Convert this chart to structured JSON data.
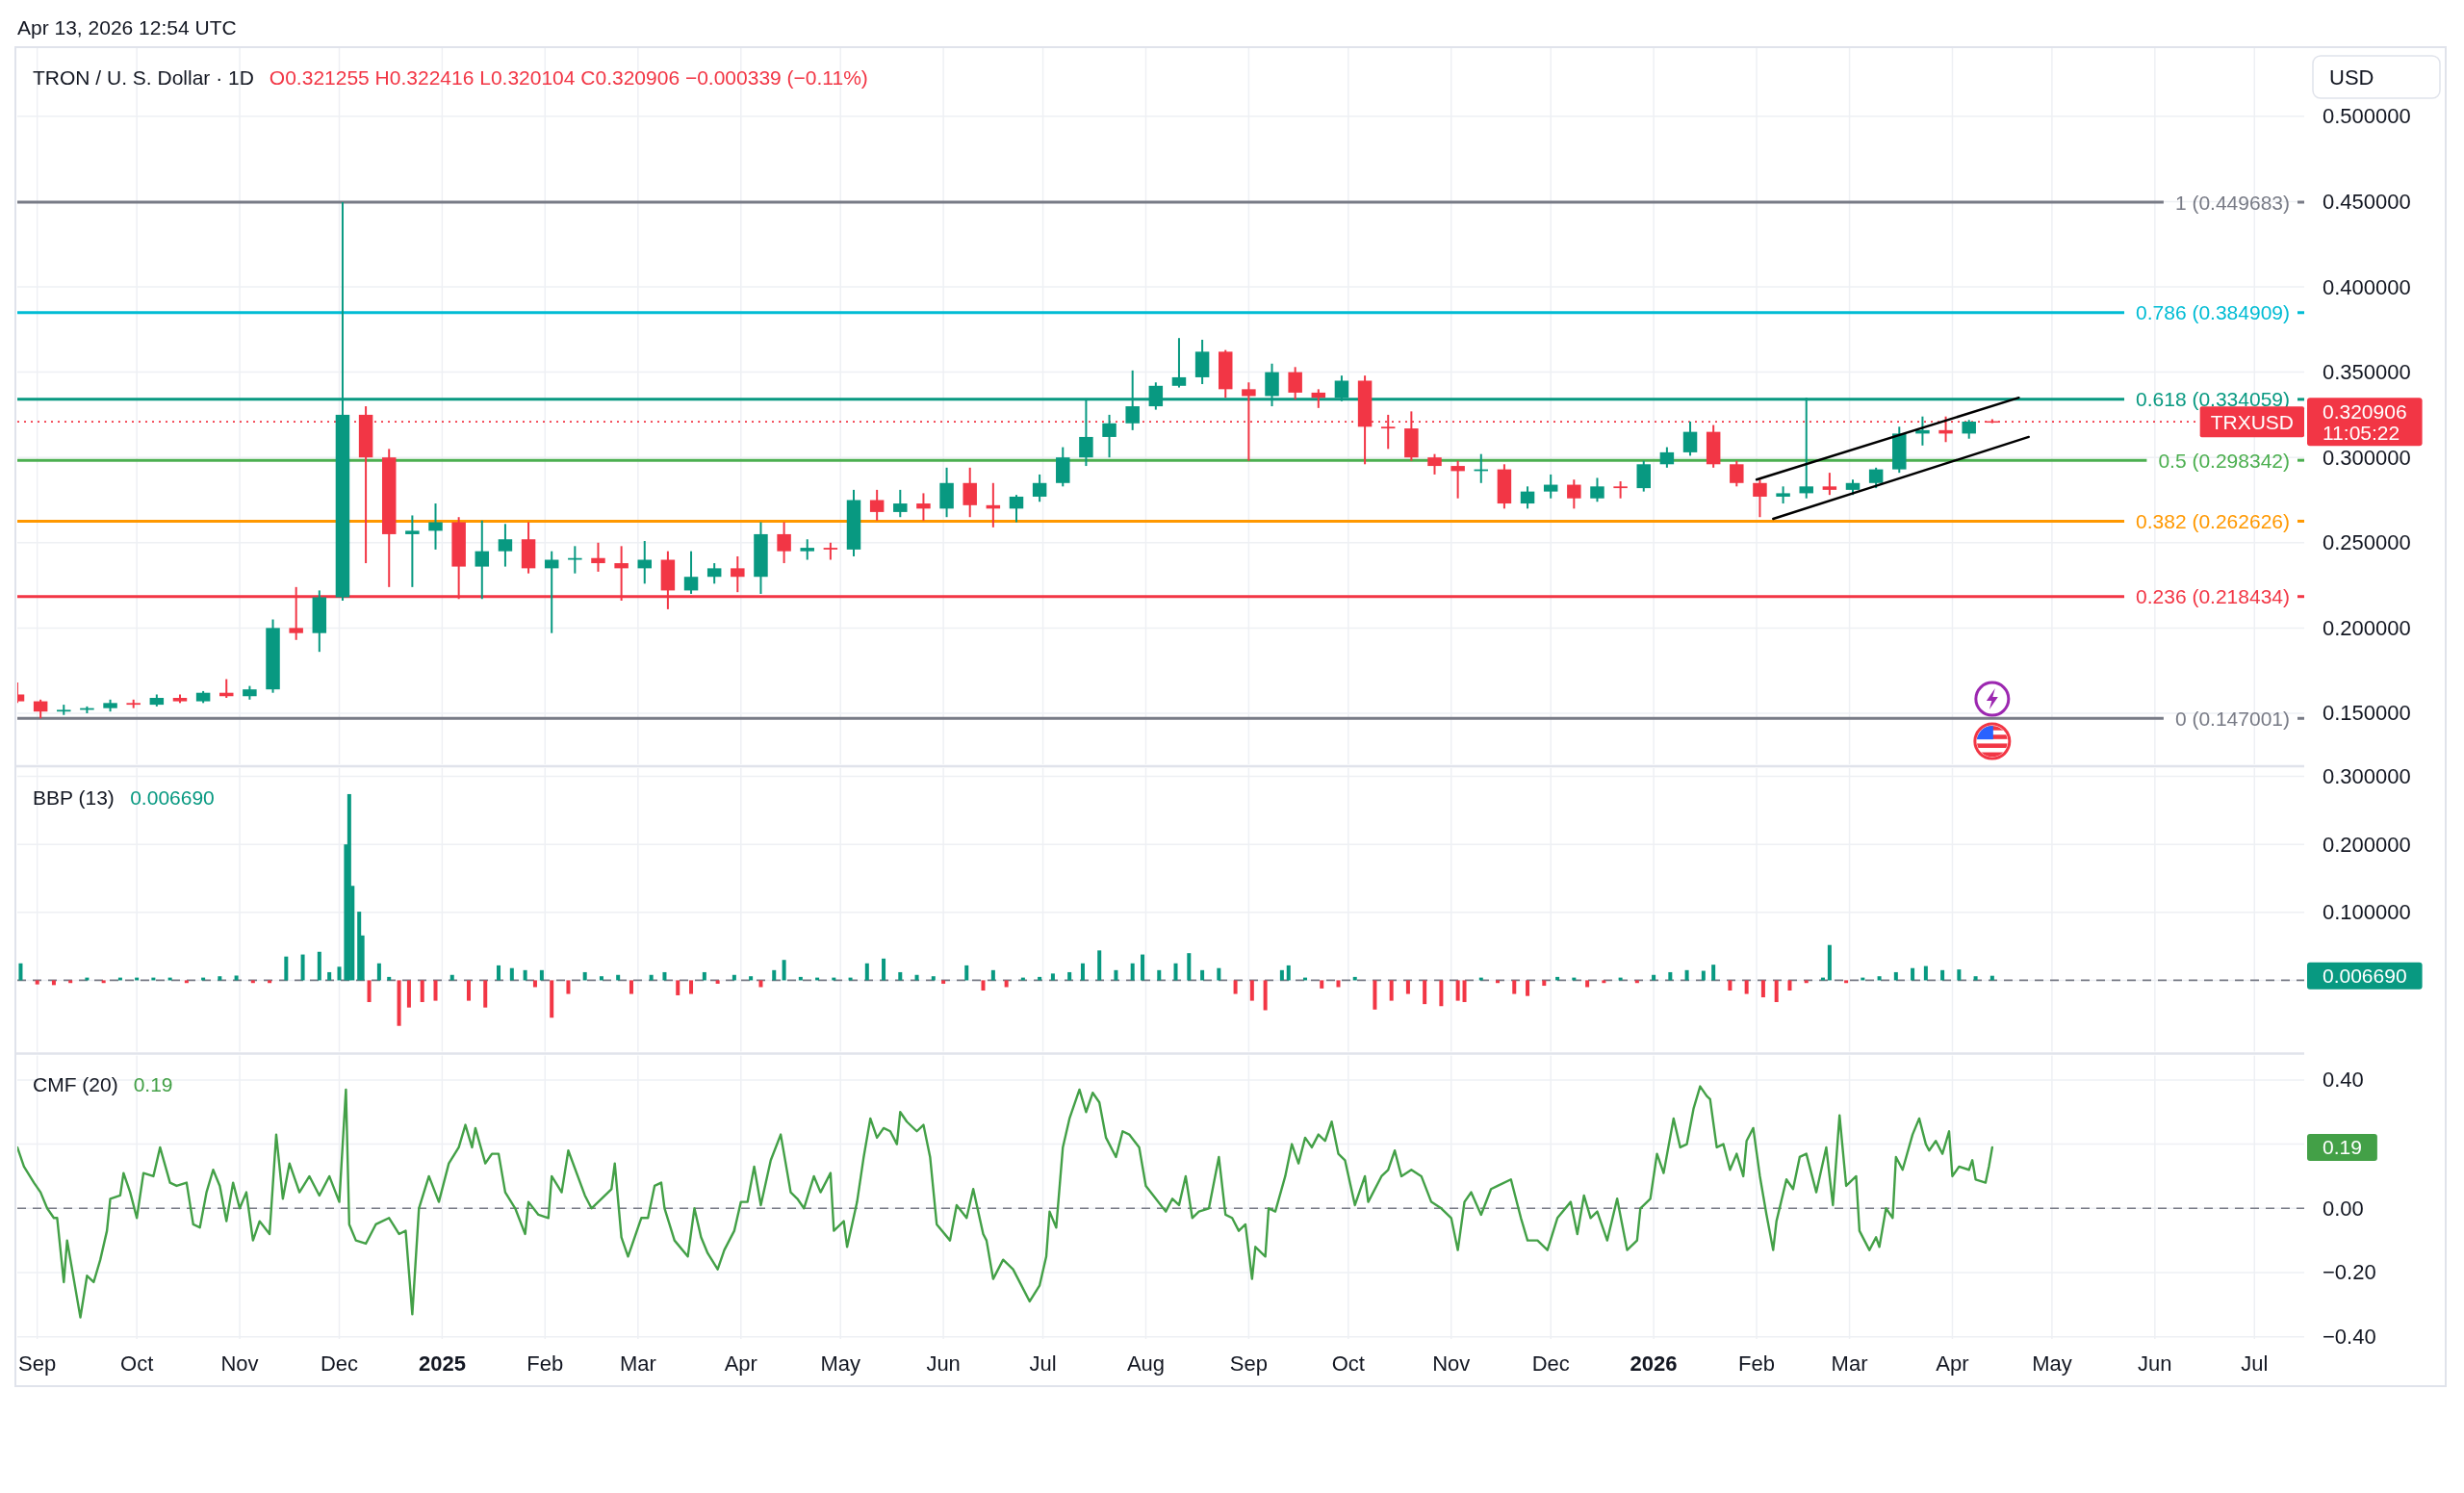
{
  "chart_data": [
    {
      "type": "candlestick",
      "title": "TRON / U. S. Dollar · 1D",
      "subtitle": "O0.321255 H0.322416 L0.320104 C0.320906 −0.000339 (−0.11%)",
      "ylabel": "USD",
      "x": [
        "2024-08-26",
        "2024-09-02",
        "2024-09-09",
        "2024-09-16",
        "2024-09-23",
        "2024-09-30",
        "2024-10-07",
        "2024-10-14",
        "2024-10-21",
        "2024-10-28",
        "2024-11-04",
        "2024-11-11",
        "2024-11-18",
        "2024-11-25",
        "2024-12-02",
        "2024-12-09",
        "2024-12-16",
        "2024-12-23",
        "2024-12-30",
        "2025-01-06",
        "2025-01-13",
        "2025-01-20",
        "2025-01-27",
        "2025-02-03",
        "2025-02-10",
        "2025-02-17",
        "2025-02-24",
        "2025-03-03",
        "2025-03-10",
        "2025-03-17",
        "2025-03-24",
        "2025-03-31",
        "2025-04-07",
        "2025-04-14",
        "2025-04-21",
        "2025-04-28",
        "2025-05-05",
        "2025-05-12",
        "2025-05-19",
        "2025-05-26",
        "2025-06-02",
        "2025-06-09",
        "2025-06-16",
        "2025-06-23",
        "2025-06-30",
        "2025-07-07",
        "2025-07-14",
        "2025-07-21",
        "2025-07-28",
        "2025-08-04",
        "2025-08-11",
        "2025-08-18",
        "2025-08-25",
        "2025-09-01",
        "2025-09-08",
        "2025-09-15",
        "2025-09-22",
        "2025-09-29",
        "2025-10-06",
        "2025-10-13",
        "2025-10-20",
        "2025-10-27",
        "2025-11-03",
        "2025-11-10",
        "2025-11-17",
        "2025-11-24",
        "2025-12-01",
        "2025-12-08",
        "2025-12-15",
        "2025-12-22",
        "2025-12-29",
        "2026-01-05",
        "2026-01-12",
        "2026-01-19",
        "2026-01-26",
        "2026-02-02",
        "2026-02-09",
        "2026-02-16",
        "2026-02-23",
        "2026-03-02",
        "2026-03-09",
        "2026-03-16",
        "2026-03-23",
        "2026-03-30",
        "2026-04-06",
        "2026-04-13"
      ],
      "ohlc": [
        [
          0.161,
          0.168,
          0.156,
          0.157
        ],
        [
          0.157,
          0.158,
          0.147,
          0.151
        ],
        [
          0.151,
          0.155,
          0.149,
          0.152
        ],
        [
          0.152,
          0.154,
          0.15,
          0.153
        ],
        [
          0.153,
          0.158,
          0.151,
          0.156
        ],
        [
          0.156,
          0.158,
          0.153,
          0.155
        ],
        [
          0.155,
          0.161,
          0.154,
          0.159
        ],
        [
          0.159,
          0.161,
          0.156,
          0.157
        ],
        [
          0.157,
          0.163,
          0.156,
          0.162
        ],
        [
          0.162,
          0.17,
          0.159,
          0.16
        ],
        [
          0.16,
          0.166,
          0.158,
          0.164
        ],
        [
          0.164,
          0.205,
          0.162,
          0.2
        ],
        [
          0.2,
          0.224,
          0.193,
          0.197
        ],
        [
          0.197,
          0.222,
          0.186,
          0.218
        ],
        [
          0.218,
          0.449683,
          0.216,
          0.325
        ],
        [
          0.325,
          0.33,
          0.238,
          0.3
        ],
        [
          0.3,
          0.305,
          0.224,
          0.255
        ],
        [
          0.255,
          0.266,
          0.224,
          0.257
        ],
        [
          0.257,
          0.273,
          0.246,
          0.262
        ],
        [
          0.262,
          0.265,
          0.217,
          0.236
        ],
        [
          0.236,
          0.263,
          0.217,
          0.245
        ],
        [
          0.245,
          0.261,
          0.236,
          0.252
        ],
        [
          0.252,
          0.262,
          0.232,
          0.235
        ],
        [
          0.235,
          0.245,
          0.197,
          0.24
        ],
        [
          0.24,
          0.248,
          0.232,
          0.241
        ],
        [
          0.241,
          0.25,
          0.233,
          0.238
        ],
        [
          0.238,
          0.248,
          0.216,
          0.235
        ],
        [
          0.235,
          0.251,
          0.226,
          0.24
        ],
        [
          0.24,
          0.245,
          0.211,
          0.222
        ],
        [
          0.222,
          0.245,
          0.22,
          0.23
        ],
        [
          0.23,
          0.238,
          0.226,
          0.235
        ],
        [
          0.235,
          0.242,
          0.221,
          0.23
        ],
        [
          0.23,
          0.262,
          0.22,
          0.255
        ],
        [
          0.255,
          0.262,
          0.238,
          0.245
        ],
        [
          0.245,
          0.252,
          0.24,
          0.247
        ],
        [
          0.247,
          0.25,
          0.24,
          0.246
        ],
        [
          0.246,
          0.281,
          0.242,
          0.275
        ],
        [
          0.275,
          0.281,
          0.263,
          0.268
        ],
        [
          0.268,
          0.281,
          0.265,
          0.273
        ],
        [
          0.273,
          0.279,
          0.263,
          0.27
        ],
        [
          0.27,
          0.294,
          0.265,
          0.285
        ],
        [
          0.285,
          0.294,
          0.265,
          0.272
        ],
        [
          0.272,
          0.285,
          0.259,
          0.27
        ],
        [
          0.27,
          0.278,
          0.262,
          0.277
        ],
        [
          0.277,
          0.29,
          0.274,
          0.285
        ],
        [
          0.285,
          0.306,
          0.283,
          0.3
        ],
        [
          0.3,
          0.334,
          0.295,
          0.312
        ],
        [
          0.312,
          0.325,
          0.3,
          0.32
        ],
        [
          0.32,
          0.351,
          0.316,
          0.33
        ],
        [
          0.33,
          0.344,
          0.328,
          0.342
        ],
        [
          0.342,
          0.37,
          0.341,
          0.347
        ],
        [
          0.347,
          0.369,
          0.343,
          0.362
        ],
        [
          0.362,
          0.363,
          0.335,
          0.34
        ],
        [
          0.34,
          0.344,
          0.298,
          0.336
        ],
        [
          0.336,
          0.355,
          0.33,
          0.35
        ],
        [
          0.35,
          0.353,
          0.334,
          0.338
        ],
        [
          0.338,
          0.34,
          0.329,
          0.335
        ],
        [
          0.335,
          0.348,
          0.333,
          0.345
        ],
        [
          0.345,
          0.348,
          0.296,
          0.318
        ],
        [
          0.318,
          0.325,
          0.305,
          0.317
        ],
        [
          0.317,
          0.327,
          0.298,
          0.3
        ],
        [
          0.3,
          0.302,
          0.29,
          0.295
        ],
        [
          0.295,
          0.298,
          0.276,
          0.292
        ],
        [
          0.292,
          0.302,
          0.285,
          0.293
        ],
        [
          0.293,
          0.296,
          0.27,
          0.273
        ],
        [
          0.273,
          0.283,
          0.27,
          0.28
        ],
        [
          0.28,
          0.29,
          0.276,
          0.284
        ],
        [
          0.284,
          0.287,
          0.27,
          0.276
        ],
        [
          0.276,
          0.288,
          0.274,
          0.283
        ],
        [
          0.283,
          0.286,
          0.276,
          0.282
        ],
        [
          0.282,
          0.298,
          0.28,
          0.296
        ],
        [
          0.296,
          0.306,
          0.294,
          0.303
        ],
        [
          0.303,
          0.321,
          0.301,
          0.315
        ],
        [
          0.315,
          0.319,
          0.294,
          0.296
        ],
        [
          0.296,
          0.298,
          0.283,
          0.285
        ],
        [
          0.285,
          0.287,
          0.265,
          0.277
        ],
        [
          0.277,
          0.283,
          0.273,
          0.279
        ],
        [
          0.279,
          0.335,
          0.276,
          0.283
        ],
        [
          0.283,
          0.291,
          0.278,
          0.281
        ],
        [
          0.281,
          0.287,
          0.278,
          0.285
        ],
        [
          0.285,
          0.294,
          0.282,
          0.293
        ],
        [
          0.293,
          0.318,
          0.291,
          0.314
        ],
        [
          0.314,
          0.324,
          0.307,
          0.316
        ],
        [
          0.316,
          0.324,
          0.309,
          0.314
        ],
        [
          0.314,
          0.322,
          0.311,
          0.321
        ],
        [
          0.321255,
          0.322416,
          0.320104,
          0.320906
        ]
      ],
      "colors": [
        "#f23645",
        "#f23645",
        "#089981",
        "#089981",
        "#089981",
        "#f23645",
        "#089981",
        "#f23645",
        "#089981",
        "#f23645",
        "#089981",
        "#089981",
        "#f23645",
        "#089981",
        "#089981",
        "#f23645",
        "#f23645",
        "#089981",
        "#089981",
        "#f23645",
        "#089981",
        "#089981",
        "#f23645",
        "#089981",
        "#089981",
        "#f23645",
        "#f23645",
        "#089981",
        "#f23645",
        "#089981",
        "#089981",
        "#f23645",
        "#089981",
        "#f23645",
        "#089981",
        "#f23645",
        "#089981",
        "#f23645",
        "#089981",
        "#f23645",
        "#089981",
        "#f23645",
        "#f23645",
        "#089981",
        "#089981",
        "#089981",
        "#089981",
        "#089981",
        "#089981",
        "#089981",
        "#089981",
        "#089981",
        "#f23645",
        "#f23645",
        "#089981",
        "#f23645",
        "#f23645",
        "#089981",
        "#f23645",
        "#f23645",
        "#f23645",
        "#f23645",
        "#f23645",
        "#089981",
        "#f23645",
        "#089981",
        "#089981",
        "#f23645",
        "#089981",
        "#f23645",
        "#089981",
        "#089981",
        "#089981",
        "#f23645",
        "#f23645",
        "#f23645",
        "#089981",
        "#089981",
        "#f23645",
        "#089981",
        "#089981",
        "#089981",
        "#089981",
        "#f23645",
        "#089981",
        "#f23645"
      ],
      "series": [
        {
          "type": "line",
          "x": [
            "2026-02-01",
            "2026-04-21"
          ],
          "values": [
            0.287,
            0.335
          ],
          "color": "#000000"
        },
        {
          "type": "line",
          "x": [
            "2026-02-06",
            "2026-04-24"
          ],
          "values": [
            0.264,
            0.312
          ],
          "color": "#000000"
        }
      ],
      "xlim": [
        "2024-08-26",
        "2026-07-16"
      ],
      "xticks": [
        {
          "value": "2024-09-01",
          "label": null
        },
        {
          "value": "2024-10-01",
          "label": null
        },
        {
          "value": "2024-11-01",
          "label": null
        },
        {
          "value": "2024-12-01",
          "label": null
        },
        {
          "value": "2025-01-01",
          "label": null
        },
        {
          "value": "2025-02-01",
          "label": null
        },
        {
          "value": "2025-03-01",
          "label": null
        },
        {
          "value": "2025-04-01",
          "label": null
        },
        {
          "value": "2025-05-01",
          "label": null
        },
        {
          "value": "2025-06-01",
          "label": null
        },
        {
          "value": "2025-07-01",
          "label": null
        },
        {
          "value": "2025-08-01",
          "label": null
        },
        {
          "value": "2025-09-01",
          "label": null
        },
        {
          "value": "2025-10-01",
          "label": null
        },
        {
          "value": "2025-11-01",
          "label": null
        },
        {
          "value": "2025-12-01",
          "label": null
        },
        {
          "value": "2026-01-01",
          "label": null
        },
        {
          "value": "2026-02-01",
          "label": null
        },
        {
          "value": "2026-03-01",
          "label": null
        },
        {
          "value": "2026-04-01",
          "label": null
        },
        {
          "value": "2026-05-01",
          "label": null
        },
        {
          "value": "2026-06-01",
          "label": null
        },
        {
          "value": "2026-07-01",
          "label": null
        }
      ],
      "ylim": [
        0.12,
        0.54
      ],
      "yticks": [
        {
          "value": 0.15,
          "label": "0.150000"
        },
        {
          "value": 0.2,
          "label": "0.200000"
        },
        {
          "value": 0.25,
          "label": "0.250000"
        },
        {
          "value": 0.3,
          "label": "0.300000"
        },
        {
          "value": 0.35,
          "label": "0.350000"
        },
        {
          "value": 0.4,
          "label": "0.400000"
        },
        {
          "value": 0.45,
          "label": "0.450000"
        },
        {
          "value": 0.5,
          "label": "0.500000"
        }
      ],
      "grid": true,
      "tick_labels": "y",
      "ref_lines": [
        {
          "axis": "y",
          "value": 0.449683,
          "label": "1 (0.449683)",
          "color": "#787b86"
        },
        {
          "axis": "y",
          "value": 0.384909,
          "label": "0.786 (0.384909)",
          "color": "#00bcd4"
        },
        {
          "axis": "y",
          "value": 0.334059,
          "label": "0.618 (0.334059)",
          "color": "#089981"
        },
        {
          "axis": "y",
          "value": 0.298342,
          "label": "0.5 (0.298342)",
          "color": "#4caf50"
        },
        {
          "axis": "y",
          "value": 0.262626,
          "label": "0.382 (0.262626)",
          "color": "#ff9800"
        },
        {
          "axis": "y",
          "value": 0.218434,
          "label": "0.236 (0.218434)",
          "color": "#f23645"
        },
        {
          "axis": "y",
          "value": 0.147001,
          "label": "0 (0.147001)",
          "color": "#787b86"
        },
        {
          "axis": "y",
          "value": 0.320906,
          "label": "TRXUSD",
          "color": "#f23645",
          "line_style": "dotted"
        }
      ],
      "annotations": [
        "Apr 13, 2026 12:54 UTC",
        "0.320906\n11:05:22"
      ]
    },
    {
      "type": "bar",
      "title": "BBP (13)",
      "subtitle": "0.006690",
      "x": [
        "2024-08-27",
        "2024-09-01",
        "2024-09-06",
        "2024-09-11",
        "2024-09-16",
        "2024-09-21",
        "2024-09-26",
        "2024-10-01",
        "2024-10-06",
        "2024-10-11",
        "2024-10-16",
        "2024-10-21",
        "2024-10-26",
        "2024-10-31",
        "2024-11-05",
        "2024-11-10",
        "2024-11-15",
        "2024-11-20",
        "2024-11-25",
        "2024-11-28",
        "2024-12-01",
        "2024-12-03",
        "2024-12-04",
        "2024-12-05",
        "2024-12-07",
        "2024-12-08",
        "2024-12-10",
        "2024-12-13",
        "2024-12-16",
        "2024-12-19",
        "2024-12-22",
        "2024-12-26",
        "2024-12-30",
        "2025-01-04",
        "2025-01-09",
        "2025-01-14",
        "2025-01-18",
        "2025-01-22",
        "2025-01-26",
        "2025-01-29",
        "2025-01-31",
        "2025-02-03",
        "2025-02-08",
        "2025-02-13",
        "2025-02-18",
        "2025-02-23",
        "2025-02-27",
        "2025-03-05",
        "2025-03-09",
        "2025-03-13",
        "2025-03-17",
        "2025-03-21",
        "2025-03-25",
        "2025-03-30",
        "2025-04-04",
        "2025-04-07",
        "2025-04-11",
        "2025-04-14",
        "2025-04-19",
        "2025-04-24",
        "2025-04-29",
        "2025-05-04",
        "2025-05-09",
        "2025-05-14",
        "2025-05-19",
        "2025-05-24",
        "2025-05-29",
        "2025-06-01",
        "2025-06-08",
        "2025-06-13",
        "2025-06-16",
        "2025-06-20",
        "2025-06-25",
        "2025-06-30",
        "2025-07-04",
        "2025-07-09",
        "2025-07-13",
        "2025-07-18",
        "2025-07-23",
        "2025-07-28",
        "2025-07-31",
        "2025-08-05",
        "2025-08-10",
        "2025-08-14",
        "2025-08-18",
        "2025-08-23",
        "2025-08-28",
        "2025-09-02",
        "2025-09-06",
        "2025-09-11",
        "2025-09-13",
        "2025-09-18",
        "2025-09-23",
        "2025-09-28",
        "2025-10-03",
        "2025-10-09",
        "2025-10-14",
        "2025-10-19",
        "2025-10-24",
        "2025-10-29",
        "2025-11-03",
        "2025-11-05",
        "2025-11-10",
        "2025-11-15",
        "2025-11-20",
        "2025-11-24",
        "2025-11-29",
        "2025-12-03",
        "2025-12-08",
        "2025-12-12",
        "2025-12-17",
        "2025-12-22",
        "2025-12-27",
        "2026-01-01",
        "2026-01-06",
        "2026-01-11",
        "2026-01-16",
        "2026-01-19",
        "2026-01-24",
        "2026-01-29",
        "2026-02-03",
        "2026-02-07",
        "2026-02-11",
        "2026-02-16",
        "2026-02-21",
        "2026-02-23",
        "2026-02-28",
        "2026-03-05",
        "2026-03-10",
        "2026-03-15",
        "2026-03-20",
        "2026-03-24",
        "2026-03-29",
        "2026-04-03",
        "2026-04-08",
        "2026-04-13"
      ],
      "values": [
        0.025,
        -0.006,
        -0.007,
        -0.004,
        0.004,
        -0.004,
        0.004,
        0.004,
        0.004,
        0.004,
        -0.004,
        0.004,
        0.006,
        0.007,
        -0.004,
        -0.004,
        0.035,
        0.038,
        0.042,
        0.012,
        0.02,
        0.2,
        0.274,
        0.139,
        0.101,
        0.066,
        -0.032,
        0.025,
        0.005,
        -0.067,
        -0.04,
        -0.032,
        -0.03,
        0.008,
        -0.03,
        -0.04,
        0.022,
        0.018,
        0.015,
        -0.01,
        0.015,
        -0.055,
        -0.02,
        0.012,
        0.006,
        0.008,
        -0.02,
        0.008,
        0.012,
        -0.022,
        -0.02,
        0.012,
        -0.005,
        0.008,
        0.006,
        -0.01,
        0.015,
        0.03,
        0.005,
        0.004,
        0.004,
        0.004,
        0.025,
        0.032,
        0.012,
        0.008,
        0.006,
        -0.005,
        0.022,
        -0.015,
        0.015,
        -0.01,
        0.004,
        0.005,
        0.01,
        0.012,
        0.025,
        0.044,
        0.015,
        0.025,
        0.038,
        0.015,
        0.025,
        0.04,
        0.015,
        0.018,
        -0.02,
        -0.03,
        -0.044,
        0.015,
        0.022,
        0.004,
        -0.012,
        -0.01,
        0.005,
        -0.043,
        -0.03,
        -0.02,
        -0.035,
        -0.038,
        -0.03,
        -0.032,
        0.004,
        -0.004,
        -0.02,
        -0.023,
        -0.008,
        0.005,
        0.004,
        -0.01,
        -0.004,
        0.004,
        -0.004,
        0.008,
        0.012,
        0.015,
        0.014,
        0.023,
        -0.015,
        -0.02,
        -0.025,
        -0.032,
        -0.015,
        -0.004,
        0.004,
        0.052,
        -0.004,
        0.004,
        0.006,
        0.012,
        0.018,
        0.021,
        0.015,
        0.016,
        0.006,
        0.00669
      ],
      "colors": [
        "#089981",
        "#f23645",
        "#f23645",
        "#f23645",
        "#089981",
        "#f23645",
        "#089981",
        "#089981",
        "#089981",
        "#089981",
        "#f23645",
        "#089981",
        "#089981",
        "#089981",
        "#f23645",
        "#f23645",
        "#089981",
        "#089981",
        "#089981",
        "#089981",
        "#089981",
        "#089981",
        "#089981",
        "#089981",
        "#089981",
        "#089981",
        "#f23645",
        "#089981",
        "#089981",
        "#f23645",
        "#f23645",
        "#f23645",
        "#f23645",
        "#089981",
        "#f23645",
        "#f23645",
        "#089981",
        "#089981",
        "#089981",
        "#f23645",
        "#089981",
        "#f23645",
        "#f23645",
        "#089981",
        "#089981",
        "#089981",
        "#f23645",
        "#089981",
        "#089981",
        "#f23645",
        "#f23645",
        "#089981",
        "#f23645",
        "#089981",
        "#089981",
        "#f23645",
        "#089981",
        "#089981",
        "#089981",
        "#089981",
        "#089981",
        "#089981",
        "#089981",
        "#089981",
        "#089981",
        "#089981",
        "#089981",
        "#f23645",
        "#089981",
        "#f23645",
        "#089981",
        "#f23645",
        "#089981",
        "#089981",
        "#089981",
        "#089981",
        "#089981",
        "#089981",
        "#089981",
        "#089981",
        "#089981",
        "#089981",
        "#089981",
        "#089981",
        "#089981",
        "#089981",
        "#f23645",
        "#f23645",
        "#f23645",
        "#089981",
        "#089981",
        "#089981",
        "#f23645",
        "#f23645",
        "#089981",
        "#f23645",
        "#f23645",
        "#f23645",
        "#f23645",
        "#f23645",
        "#f23645",
        "#f23645",
        "#089981",
        "#f23645",
        "#f23645",
        "#f23645",
        "#f23645",
        "#089981",
        "#089981",
        "#f23645",
        "#f23645",
        "#089981",
        "#f23645",
        "#089981",
        "#089981",
        "#089981",
        "#089981",
        "#089981",
        "#f23645",
        "#f23645",
        "#f23645",
        "#f23645",
        "#f23645",
        "#f23645",
        "#089981",
        "#089981",
        "#f23645",
        "#089981",
        "#089981",
        "#089981",
        "#089981",
        "#089981",
        "#089981",
        "#089981",
        "#089981",
        "#089981"
      ],
      "xlim": [
        "2024-08-26",
        "2026-07-16"
      ],
      "xticks": [
        {
          "value": "2024-09-01",
          "label": null
        },
        {
          "value": "2024-10-01",
          "label": null
        },
        {
          "value": "2024-11-01",
          "label": null
        },
        {
          "value": "2024-12-01",
          "label": null
        },
        {
          "value": "2025-01-01",
          "label": null
        },
        {
          "value": "2025-02-01",
          "label": null
        },
        {
          "value": "2025-03-01",
          "label": null
        },
        {
          "value": "2025-04-01",
          "label": null
        },
        {
          "value": "2025-05-01",
          "label": null
        },
        {
          "value": "2025-06-01",
          "label": null
        },
        {
          "value": "2025-07-01",
          "label": null
        },
        {
          "value": "2025-08-01",
          "label": null
        },
        {
          "value": "2025-09-01",
          "label": null
        },
        {
          "value": "2025-10-01",
          "label": null
        },
        {
          "value": "2025-11-01",
          "label": null
        },
        {
          "value": "2025-12-01",
          "label": null
        },
        {
          "value": "2026-01-01",
          "label": null
        },
        {
          "value": "2026-02-01",
          "label": null
        },
        {
          "value": "2026-03-01",
          "label": null
        },
        {
          "value": "2026-04-01",
          "label": null
        },
        {
          "value": "2026-05-01",
          "label": null
        },
        {
          "value": "2026-06-01",
          "label": null
        },
        {
          "value": "2026-07-01",
          "label": null
        }
      ],
      "ylim": [
        -0.105,
        0.312
      ],
      "yticks": [
        {
          "value": 0,
          "label": null
        },
        {
          "value": 0.1,
          "label": "0.100000"
        },
        {
          "value": 0.2,
          "label": "0.200000"
        },
        {
          "value": 0.3,
          "label": "0.300000"
        }
      ],
      "grid": true,
      "tick_labels": "y",
      "ref_lines": [
        {
          "axis": "y",
          "value": 0,
          "color": "#787b86",
          "line_style": "dashed"
        }
      ],
      "annotations": [
        "0.006690"
      ]
    },
    {
      "type": "line",
      "title": "CMF (20)",
      "subtitle": "0.19",
      "color": "#43a047",
      "x": [
        "2024-08-26",
        "2024-08-28",
        "2024-08-31",
        "2024-09-02",
        "2024-09-04",
        "2024-09-06",
        "2024-09-07",
        "2024-09-09",
        "2024-09-10",
        "2024-09-11",
        "2024-09-14",
        "2024-09-16",
        "2024-09-18",
        "2024-09-20",
        "2024-09-22",
        "2024-09-23",
        "2024-09-26",
        "2024-09-27",
        "2024-09-29",
        "2024-10-01",
        "2024-10-03",
        "2024-10-06",
        "2024-10-08",
        "2024-10-11",
        "2024-10-13",
        "2024-10-16",
        "2024-10-18",
        "2024-10-20",
        "2024-10-22",
        "2024-10-24",
        "2024-10-26",
        "2024-10-28",
        "2024-10-30",
        "2024-11-01",
        "2024-11-03",
        "2024-11-05",
        "2024-11-07",
        "2024-11-10",
        "2024-11-12",
        "2024-11-14",
        "2024-11-16",
        "2024-11-19",
        "2024-11-22",
        "2024-11-25",
        "2024-11-28",
        "2024-12-01",
        "2024-12-03",
        "2024-12-04",
        "2024-12-06",
        "2024-12-09",
        "2024-12-12",
        "2024-12-16",
        "2024-12-19",
        "2024-12-21",
        "2024-12-23",
        "2024-12-25",
        "2024-12-28",
        "2024-12-31",
        "2025-01-03",
        "2025-01-06",
        "2025-01-08",
        "2025-01-10",
        "2025-01-11",
        "2025-01-14",
        "2025-01-16",
        "2025-01-18",
        "2025-01-20",
        "2025-01-23",
        "2025-01-26",
        "2025-01-27",
        "2025-01-30",
        "2025-02-02",
        "2025-02-03",
        "2025-02-06",
        "2025-02-08",
        "2025-02-13",
        "2025-02-15",
        "2025-02-18",
        "2025-02-21",
        "2025-02-22",
        "2025-02-24",
        "2025-02-26",
        "2025-03-02",
        "2025-03-04",
        "2025-03-06",
        "2025-03-08",
        "2025-03-09",
        "2025-03-12",
        "2025-03-16",
        "2025-03-18",
        "2025-03-20",
        "2025-03-22",
        "2025-03-25",
        "2025-03-27",
        "2025-03-30",
        "2025-04-01",
        "2025-04-03",
        "2025-04-05",
        "2025-04-07",
        "2025-04-10",
        "2025-04-13",
        "2025-04-16",
        "2025-04-18",
        "2025-04-20",
        "2025-04-23",
        "2025-04-25",
        "2025-04-28",
        "2025-04-29",
        "2025-05-02",
        "2025-05-03",
        "2025-05-06",
        "2025-05-08",
        "2025-05-10",
        "2025-05-12",
        "2025-05-14",
        "2025-05-16",
        "2025-05-18",
        "2025-05-19",
        "2025-05-21",
        "2025-05-24",
        "2025-05-26",
        "2025-05-28",
        "2025-05-30",
        "2025-06-03",
        "2025-06-05",
        "2025-06-08",
        "2025-06-10",
        "2025-06-13",
        "2025-06-14",
        "2025-06-16",
        "2025-06-19",
        "2025-06-22",
        "2025-06-25",
        "2025-06-27",
        "2025-06-30",
        "2025-07-02",
        "2025-07-03",
        "2025-07-05",
        "2025-07-07",
        "2025-07-09",
        "2025-07-12",
        "2025-07-14",
        "2025-07-16",
        "2025-07-18",
        "2025-07-20",
        "2025-07-23",
        "2025-07-25",
        "2025-07-27",
        "2025-07-30",
        "2025-08-01",
        "2025-08-04",
        "2025-08-07",
        "2025-08-09",
        "2025-08-11",
        "2025-08-13",
        "2025-08-15",
        "2025-08-17",
        "2025-08-20",
        "2025-08-23",
        "2025-08-25",
        "2025-08-27",
        "2025-08-29",
        "2025-08-31",
        "2025-09-02",
        "2025-09-03",
        "2025-09-06",
        "2025-09-07",
        "2025-09-09",
        "2025-09-12",
        "2025-09-14",
        "2025-09-16",
        "2025-09-18",
        "2025-09-20",
        "2025-09-22",
        "2025-09-24",
        "2025-09-26",
        "2025-09-28",
        "2025-09-30",
        "2025-10-03",
        "2025-10-06",
        "2025-10-07",
        "2025-10-11",
        "2025-10-13",
        "2025-10-15",
        "2025-10-17",
        "2025-10-20",
        "2025-10-23",
        "2025-10-26",
        "2025-10-29",
        "2025-11-01",
        "2025-11-03",
        "2025-11-05",
        "2025-11-07",
        "2025-11-10",
        "2025-11-13",
        "2025-11-15",
        "2025-11-19",
        "2025-11-22",
        "2025-11-24",
        "2025-11-27",
        "2025-11-30",
        "2025-12-03",
        "2025-12-07",
        "2025-12-09",
        "2025-12-11",
        "2025-12-13",
        "2025-12-15",
        "2025-12-18",
        "2025-12-21",
        "2025-12-24",
        "2025-12-27",
        "2025-12-28",
        "2025-12-31",
        "2026-01-02",
        "2026-01-04",
        "2026-01-07",
        "2026-01-09",
        "2026-01-11",
        "2026-01-13",
        "2026-01-15",
        "2026-01-17",
        "2026-01-18",
        "2026-01-20",
        "2026-01-22",
        "2026-01-24",
        "2026-01-26",
        "2026-01-28",
        "2026-01-29",
        "2026-01-31",
        "2026-02-02",
        "2026-02-04",
        "2026-02-06",
        "2026-02-07",
        "2026-02-10",
        "2026-02-12",
        "2026-02-14",
        "2026-02-16",
        "2026-02-19",
        "2026-02-22",
        "2026-02-24",
        "2026-02-26",
        "2026-02-28",
        "2026-03-03",
        "2026-03-04",
        "2026-03-07",
        "2026-03-09",
        "2026-03-10",
        "2026-03-12",
        "2026-03-14",
        "2026-03-15",
        "2026-03-17",
        "2026-03-20",
        "2026-03-22",
        "2026-03-24",
        "2026-03-25",
        "2026-03-27",
        "2026-03-29",
        "2026-03-31",
        "2026-04-01",
        "2026-04-03",
        "2026-04-06",
        "2026-04-07",
        "2026-04-08",
        "2026-04-11",
        "2026-04-12",
        "2026-04-13"
      ],
      "values": [
        0.19,
        0.13,
        0.08,
        0.05,
        0,
        -0.03,
        -0.03,
        -0.23,
        -0.1,
        -0.16,
        -0.34,
        -0.21,
        -0.23,
        -0.16,
        -0.07,
        0.03,
        0.04,
        0.11,
        0.05,
        -0.03,
        0.11,
        0.1,
        0.19,
        0.08,
        0.07,
        0.08,
        -0.05,
        -0.06,
        0.05,
        0.12,
        0.07,
        -0.04,
        0.08,
        0,
        0.05,
        -0.1,
        -0.04,
        -0.08,
        0.23,
        0.03,
        0.14,
        0.05,
        0.1,
        0.04,
        0.1,
        0.02,
        0.37,
        -0.05,
        -0.1,
        -0.11,
        -0.05,
        -0.03,
        -0.08,
        -0.07,
        -0.33,
        0,
        0.1,
        0.02,
        0.14,
        0.19,
        0.26,
        0.19,
        0.25,
        0.14,
        0.17,
        0.17,
        0.05,
        0,
        -0.08,
        0.02,
        -0.02,
        -0.03,
        0.1,
        0.05,
        0.18,
        0.04,
        0,
        0.03,
        0.06,
        0.14,
        -0.09,
        -0.15,
        -0.03,
        -0.03,
        0.07,
        0.08,
        0,
        -0.1,
        -0.15,
        0,
        -0.09,
        -0.14,
        -0.19,
        -0.13,
        -0.07,
        0.02,
        0.02,
        0.13,
        0.01,
        0.15,
        0.23,
        0.05,
        0.03,
        0,
        0.1,
        0.05,
        0.11,
        -0.07,
        -0.04,
        -0.12,
        0.02,
        0.16,
        0.28,
        0.22,
        0.25,
        0.24,
        0.2,
        0.3,
        0.27,
        0.24,
        0.26,
        0.16,
        -0.05,
        -0.1,
        0.01,
        -0.03,
        0.06,
        -0.08,
        -0.1,
        -0.22,
        -0.16,
        -0.19,
        -0.25,
        -0.29,
        -0.24,
        -0.15,
        -0.01,
        -0.06,
        0.19,
        0.28,
        0.37,
        0.3,
        0.36,
        0.33,
        0.22,
        0.16,
        0.24,
        0.23,
        0.19,
        0.07,
        0.03,
        -0.01,
        0.03,
        0.01,
        0.1,
        -0.03,
        -0.01,
        0,
        0.16,
        -0.02,
        -0.03,
        -0.07,
        -0.05,
        -0.22,
        -0.12,
        -0.15,
        0,
        -0.01,
        0.1,
        0.2,
        0.14,
        0.22,
        0.19,
        0.23,
        0.21,
        0.27,
        0.17,
        0.15,
        0.01,
        0.1,
        0.02,
        0.1,
        0.12,
        0.18,
        0.1,
        0.12,
        0.1,
        0.02,
        0,
        -0.03,
        -0.13,
        0.02,
        0.05,
        -0.02,
        0.06,
        0.07,
        0.09,
        -0.03,
        -0.1,
        -0.1,
        -0.13,
        -0.03,
        0.02,
        -0.08,
        0.04,
        -0.03,
        -0.01,
        -0.1,
        0.03,
        -0.13,
        -0.1,
        0,
        0.03,
        0.17,
        0.11,
        0.28,
        0.19,
        0.2,
        0.31,
        0.38,
        0.35,
        0.34,
        0.19,
        0.2,
        0.12,
        0.17,
        0.1,
        0.21,
        0.25,
        0.1,
        -0.02,
        -0.13,
        -0.04,
        0.09,
        0.06,
        0.16,
        0.17,
        0.05,
        0.19,
        0.01,
        0.29,
        0.07,
        0.1,
        -0.07,
        -0.13,
        -0.09,
        -0.12,
        0,
        -0.03,
        0.16,
        0.12,
        0.23,
        0.28,
        0.2,
        0.18,
        0.21,
        0.17,
        0.24,
        0.1,
        0.13,
        0.12,
        0.15,
        0.09,
        0.08,
        0.13,
        0.19
      ],
      "xlim": [
        "2024-08-26",
        "2026-07-16"
      ],
      "xticks": [
        {
          "value": "2024-09-01",
          "label": "Sep"
        },
        {
          "value": "2024-10-01",
          "label": "Oct"
        },
        {
          "value": "2024-11-01",
          "label": "Nov"
        },
        {
          "value": "2024-12-01",
          "label": "Dec"
        },
        {
          "value": "2025-01-01",
          "label": "2025"
        },
        {
          "value": "2025-02-01",
          "label": "Feb"
        },
        {
          "value": "2025-03-01",
          "label": "Mar"
        },
        {
          "value": "2025-04-01",
          "label": "Apr"
        },
        {
          "value": "2025-05-01",
          "label": "May"
        },
        {
          "value": "2025-06-01",
          "label": "Jun"
        },
        {
          "value": "2025-07-01",
          "label": "Jul"
        },
        {
          "value": "2025-08-01",
          "label": "Aug"
        },
        {
          "value": "2025-09-01",
          "label": "Sep"
        },
        {
          "value": "2025-10-01",
          "label": "Oct"
        },
        {
          "value": "2025-11-01",
          "label": "Nov"
        },
        {
          "value": "2025-12-01",
          "label": "Dec"
        },
        {
          "value": "2026-01-01",
          "label": "2026"
        },
        {
          "value": "2026-02-01",
          "label": "Feb"
        },
        {
          "value": "2026-03-01",
          "label": "Mar"
        },
        {
          "value": "2026-04-01",
          "label": "Apr"
        },
        {
          "value": "2026-05-01",
          "label": "May"
        },
        {
          "value": "2026-06-01",
          "label": "Jun"
        },
        {
          "value": "2026-07-01",
          "label": "Jul"
        }
      ],
      "ylim": [
        -0.407,
        0.476
      ],
      "yticks": [
        {
          "value": -0.4,
          "label": "−0.40"
        },
        {
          "value": -0.2,
          "label": "−0.20"
        },
        {
          "value": 0,
          "label": "0.00"
        },
        {
          "value": 0.2,
          "label": null
        },
        {
          "value": 0.4,
          "label": "0.40"
        }
      ],
      "grid": true,
      "ref_lines": [
        {
          "axis": "y",
          "value": 0,
          "color": "#787b86",
          "line_style": "dashed"
        }
      ],
      "annotations": [
        "0.19"
      ]
    }
  ]
}
